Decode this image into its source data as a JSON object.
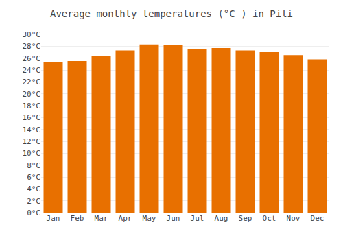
{
  "chart_data": {
    "type": "bar",
    "title": "Average monthly temperatures (°C ) in Pili",
    "categories": [
      "Jan",
      "Feb",
      "Mar",
      "Apr",
      "May",
      "Jun",
      "Jul",
      "Aug",
      "Sep",
      "Oct",
      "Nov",
      "Dec"
    ],
    "values": [
      25.3,
      25.5,
      26.3,
      27.3,
      28.3,
      28.2,
      27.5,
      27.7,
      27.3,
      27.0,
      26.5,
      25.8
    ],
    "color": "#E87000",
    "ylim": [
      0,
      30
    ],
    "yticks": [
      {
        "value": 0,
        "label": "0°C"
      },
      {
        "value": 2,
        "label": "2°C"
      },
      {
        "value": 4,
        "label": "4°C"
      },
      {
        "value": 6,
        "label": "6°C"
      },
      {
        "value": 8,
        "label": "8°C"
      },
      {
        "value": 10,
        "label": "10°C"
      },
      {
        "value": 12,
        "label": "12°C"
      },
      {
        "value": 14,
        "label": "14°C"
      },
      {
        "value": 16,
        "label": "16°C"
      },
      {
        "value": 18,
        "label": "18°C"
      },
      {
        "value": 20,
        "label": "20°C"
      },
      {
        "value": 22,
        "label": "22°C"
      },
      {
        "value": 24,
        "label": "24°C"
      },
      {
        "value": 26,
        "label": "26°C"
      },
      {
        "value": 28,
        "label": "28°C"
      },
      {
        "value": 30,
        "label": "30°C"
      }
    ],
    "grid": true
  }
}
